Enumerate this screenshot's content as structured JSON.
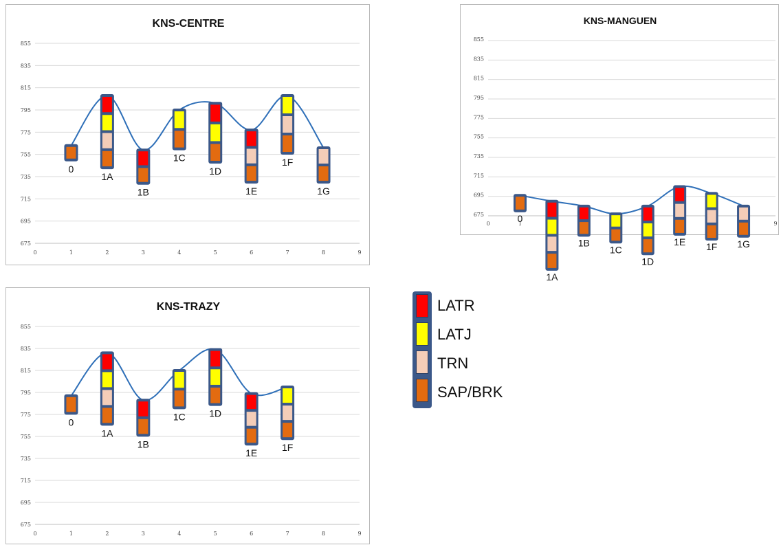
{
  "colors": {
    "line": "#2e6fb8",
    "frame": "#3b5889",
    "LATR": "#ff0000",
    "LATJ": "#ffff00",
    "TRN": "#f4cdb8",
    "SAP/BRK": "#e36b10",
    "grid": "#d9d9d9"
  },
  "legend": {
    "items": [
      {
        "key": "LATR",
        "label": "LATR"
      },
      {
        "key": "LATJ",
        "label": "LATJ"
      },
      {
        "key": "TRN",
        "label": "TRN"
      },
      {
        "key": "SAP/BRK",
        "label": "SAP/BRK"
      }
    ]
  },
  "chart_data": [
    {
      "type": "line",
      "title": "KNS-CENTRE",
      "xlabel": "",
      "ylabel": "",
      "xlim": [
        0,
        9
      ],
      "ylim": [
        675,
        855
      ],
      "xticks": [
        "0",
        "1",
        "2",
        "3",
        "4",
        "5",
        "6",
        "7",
        "8",
        "9"
      ],
      "yticks": [
        "675",
        "695",
        "715",
        "735",
        "755",
        "775",
        "795",
        "815",
        "835",
        "855"
      ],
      "grid": true,
      "series": [
        {
          "points": [
            {
              "x": 1,
              "y": 763,
              "label": "0",
              "bottom": 750,
              "stack": [
                "SAP/BRK"
              ]
            },
            {
              "x": 2,
              "y": 808,
              "label": "1A",
              "bottom": 743,
              "stack": [
                "SAP/BRK",
                "TRN",
                "LATJ",
                "LATR"
              ]
            },
            {
              "x": 3,
              "y": 759,
              "label": "1B",
              "bottom": 729,
              "stack": [
                "SAP/BRK",
                "LATR"
              ]
            },
            {
              "x": 4,
              "y": 795,
              "label": "1C",
              "bottom": 760,
              "stack": [
                "SAP/BRK",
                "LATJ"
              ]
            },
            {
              "x": 5,
              "y": 801,
              "label": "1D",
              "bottom": 748,
              "stack": [
                "SAP/BRK",
                "LATJ",
                "LATR"
              ]
            },
            {
              "x": 6,
              "y": 777,
              "label": "1E",
              "bottom": 730,
              "stack": [
                "SAP/BRK",
                "TRN",
                "LATR"
              ]
            },
            {
              "x": 7,
              "y": 808,
              "label": "1F",
              "bottom": 756,
              "stack": [
                "SAP/BRK",
                "TRN",
                "LATJ"
              ]
            },
            {
              "x": 8,
              "y": 761,
              "label": "1G",
              "bottom": 730,
              "stack": [
                "SAP/BRK",
                "TRN"
              ]
            }
          ]
        }
      ]
    },
    {
      "type": "line",
      "title": "KNS-MANGUEN",
      "xlabel": "",
      "ylabel": "",
      "xlim": [
        0,
        9
      ],
      "ylim": [
        675,
        855
      ],
      "xticks": [
        "0",
        "1",
        "9"
      ],
      "yticks": [
        "675",
        "695",
        "715",
        "735",
        "755",
        "775",
        "795",
        "815",
        "835",
        "855"
      ],
      "grid": true,
      "series": [
        {
          "points": [
            {
              "x": 1,
              "y": 696,
              "label": "0",
              "bottom": 680,
              "stack": [
                "SAP/BRK"
              ]
            },
            {
              "x": 2,
              "y": 690,
              "label": "1A",
              "bottom": 620,
              "stack": [
                "SAP/BRK",
                "TRN",
                "LATJ",
                "LATR"
              ]
            },
            {
              "x": 3,
              "y": 685,
              "label": "1B",
              "bottom": 655,
              "stack": [
                "SAP/BRK",
                "LATR"
              ]
            },
            {
              "x": 4,
              "y": 677,
              "label": "1C",
              "bottom": 648,
              "stack": [
                "SAP/BRK",
                "LATJ"
              ]
            },
            {
              "x": 5,
              "y": 685,
              "label": "1D",
              "bottom": 636,
              "stack": [
                "SAP/BRK",
                "LATJ",
                "LATR"
              ]
            },
            {
              "x": 6,
              "y": 705,
              "label": "1E",
              "bottom": 656,
              "stack": [
                "SAP/BRK",
                "TRN",
                "LATR"
              ]
            },
            {
              "x": 7,
              "y": 698,
              "label": "1F",
              "bottom": 651,
              "stack": [
                "SAP/BRK",
                "TRN",
                "LATJ"
              ]
            },
            {
              "x": 8,
              "y": 685,
              "label": "1G",
              "bottom": 654,
              "stack": [
                "SAP/BRK",
                "TRN"
              ]
            }
          ]
        }
      ]
    },
    {
      "type": "line",
      "title": "KNS-TRAZY",
      "xlabel": "",
      "ylabel": "",
      "xlim": [
        0,
        9
      ],
      "ylim": [
        675,
        855
      ],
      "xticks": [
        "0",
        "1",
        "2",
        "3",
        "4",
        "5",
        "6",
        "7",
        "8",
        "9"
      ],
      "yticks": [
        "675",
        "695",
        "715",
        "735",
        "755",
        "775",
        "795",
        "815",
        "835",
        "855"
      ],
      "grid": true,
      "series": [
        {
          "points": [
            {
              "x": 1,
              "y": 792,
              "label": "0",
              "bottom": 776,
              "stack": [
                "SAP/BRK"
              ]
            },
            {
              "x": 2,
              "y": 831,
              "label": "1A",
              "bottom": 766,
              "stack": [
                "SAP/BRK",
                "TRN",
                "LATJ",
                "LATR"
              ]
            },
            {
              "x": 3,
              "y": 788,
              "label": "1B",
              "bottom": 756,
              "stack": [
                "SAP/BRK",
                "LATR"
              ]
            },
            {
              "x": 4,
              "y": 815,
              "label": "1C",
              "bottom": 781,
              "stack": [
                "SAP/BRK",
                "LATJ"
              ]
            },
            {
              "x": 5,
              "y": 834,
              "label": "1D",
              "bottom": 784,
              "stack": [
                "SAP/BRK",
                "LATJ",
                "LATR"
              ]
            },
            {
              "x": 6,
              "y": 794,
              "label": "1E",
              "bottom": 748,
              "stack": [
                "SAP/BRK",
                "TRN",
                "LATR"
              ]
            },
            {
              "x": 7,
              "y": 800,
              "label": "1F",
              "bottom": 753,
              "stack": [
                "SAP/BRK",
                "TRN",
                "LATJ"
              ]
            }
          ]
        }
      ]
    }
  ]
}
